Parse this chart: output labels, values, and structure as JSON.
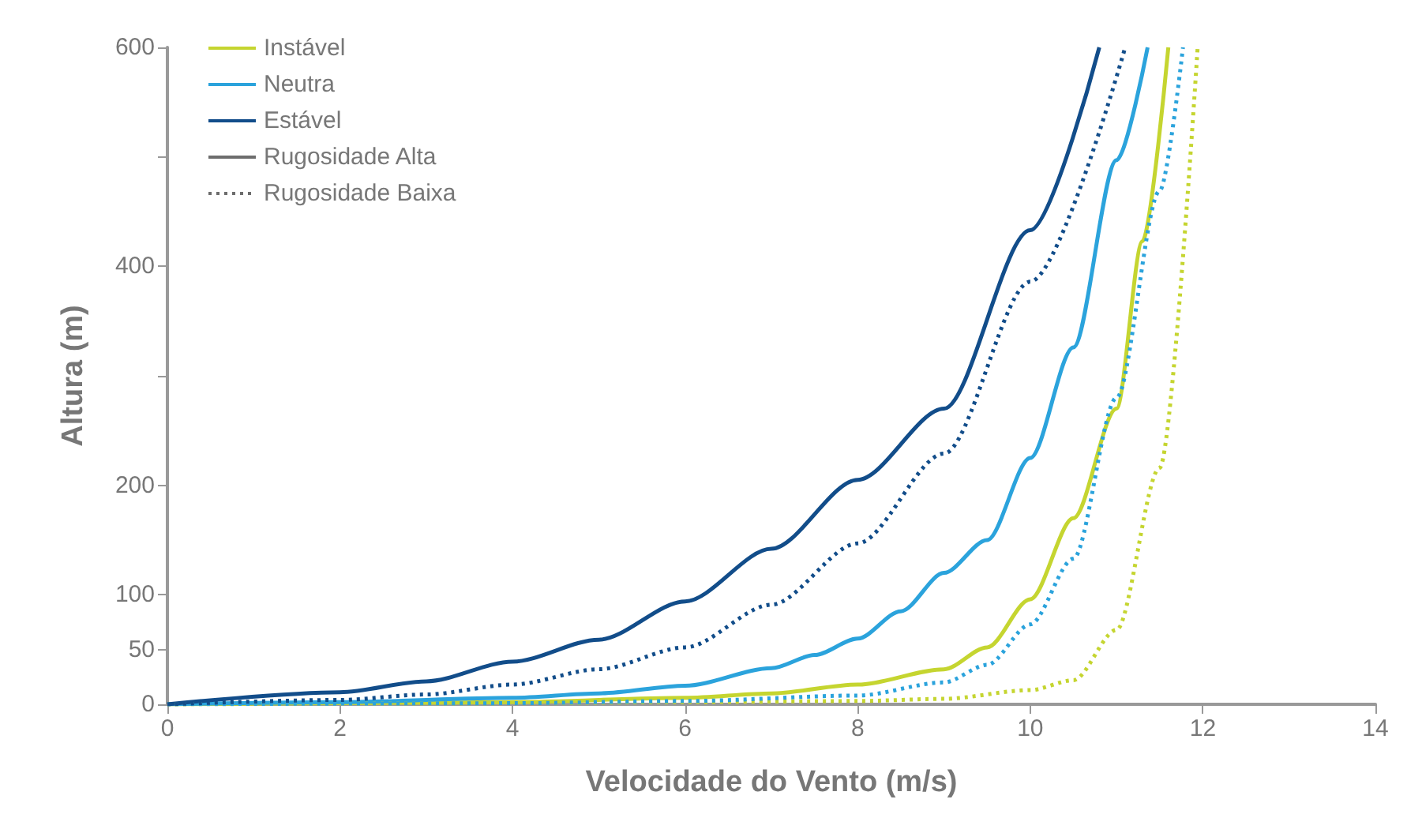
{
  "chart_data": {
    "type": "line",
    "xlabel": "Velocidade do Vento (m/s)",
    "ylabel": "Altura (m)",
    "xlim": [
      0,
      14
    ],
    "xticks": [
      0,
      2,
      4,
      6,
      8,
      10,
      12,
      14
    ],
    "ylim": [
      0,
      600
    ],
    "yticks": [
      0,
      50,
      100,
      200,
      {
        "value": 300,
        "label": null
      },
      400,
      {
        "value": 500,
        "label": null
      },
      600
    ],
    "grid": false,
    "legend": "top left",
    "marker": "none",
    "series": [
      {
        "name": "Instável",
        "color": "#c5d530",
        "line_style": "solid",
        "x": [
          0,
          2,
          4,
          6,
          7,
          8,
          9,
          9.5,
          10,
          10.5,
          11,
          11.3,
          11.6
        ],
        "values": [
          0,
          1,
          2,
          6,
          10,
          18,
          32,
          52,
          96,
          170,
          270,
          423,
          600
        ]
      },
      {
        "name": "Neutra",
        "color": "#2ba3dc",
        "line_style": "solid",
        "x": [
          0,
          2,
          4,
          5,
          6,
          7,
          7.5,
          8,
          8.5,
          9,
          9.5,
          10,
          10.5,
          11,
          11.36
        ],
        "values": [
          0,
          2,
          6,
          10,
          17,
          33,
          45,
          60,
          85,
          120,
          150,
          225,
          326,
          497,
          600
        ]
      },
      {
        "name": "Estável",
        "color": "#124d8a",
        "line_style": "solid",
        "x": [
          0,
          2,
          3,
          4,
          5,
          6,
          7,
          8,
          9,
          10,
          10.8
        ],
        "values": [
          0,
          11,
          21,
          39,
          59,
          94,
          142,
          205,
          270,
          433,
          600
        ]
      },
      {
        "color": "#c5d530",
        "line_style": "dotted",
        "x": [
          0,
          4,
          6,
          8,
          9,
          10,
          10.5,
          11,
          11.5,
          11.94
        ],
        "values": [
          0,
          1,
          2,
          3,
          5,
          13,
          22,
          68,
          216,
          600
        ]
      },
      {
        "color": "#2ba3dc",
        "line_style": "dotted",
        "x": [
          0,
          4,
          6,
          8,
          9,
          9.5,
          10,
          10.5,
          11,
          11.5,
          11.77
        ],
        "values": [
          0,
          1,
          3,
          8,
          20,
          36,
          73,
          133,
          280,
          469,
          600
        ]
      },
      {
        "color": "#124d8a",
        "line_style": "dotted",
        "x": [
          0,
          2,
          3,
          4,
          5,
          6,
          7,
          8,
          9,
          10,
          11.1
        ],
        "values": [
          0,
          4,
          9,
          18,
          32,
          52,
          91,
          147,
          229,
          386,
          600
        ]
      },
      {
        "name": "Rugosidade Alta",
        "color": "#6d6d6d",
        "line_style": "solid"
      },
      {
        "name": "Rugosidade Baixa",
        "color": "#6d6d6d",
        "line_style": "dotted"
      }
    ]
  }
}
